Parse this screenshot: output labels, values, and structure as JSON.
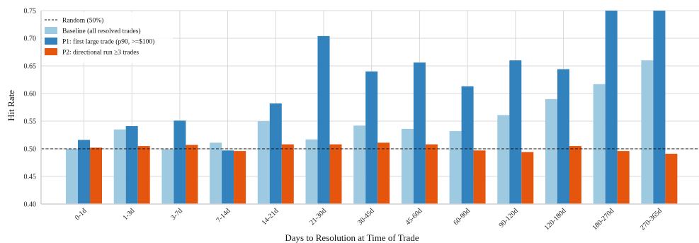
{
  "chart_data": {
    "type": "bar",
    "xlabel": "Days to Resolution at Time of Trade",
    "ylabel": "Hit Rate",
    "ylim": [
      0.4,
      0.75
    ],
    "yticks": [
      "0.40",
      "0.45",
      "0.50",
      "0.55",
      "0.60",
      "0.65",
      "0.70",
      "0.75"
    ],
    "grid": true,
    "legend_position": "top-left",
    "categories": [
      "0-1d",
      "1-3d",
      "3-7d",
      "7-14d",
      "14-21d",
      "21-30d",
      "30-45d",
      "45-60d",
      "60-90d",
      "90-120d",
      "120-180d",
      "180-270d",
      "270-365d"
    ],
    "reference_line": {
      "label": "Random (50%)",
      "value": 0.5,
      "color": "#111111"
    },
    "series": [
      {
        "name": "Baseline (all resolved trades)",
        "color": "#9ecae1",
        "values": [
          0.5,
          0.535,
          0.499,
          0.511,
          0.55,
          0.517,
          0.542,
          0.536,
          0.532,
          0.561,
          0.59,
          0.617,
          0.66
        ]
      },
      {
        "name": "P1: first large trade (p90, >=$100)",
        "color": "#3182bd",
        "values": [
          0.516,
          0.541,
          0.551,
          0.497,
          0.582,
          0.704,
          0.64,
          0.656,
          0.613,
          0.66,
          0.644,
          0.75,
          0.75
        ]
      },
      {
        "name": "P2: directional run ≥3 trades",
        "color": "#e6550d",
        "values": [
          0.502,
          0.505,
          0.507,
          0.496,
          0.508,
          0.508,
          0.511,
          0.508,
          0.497,
          0.494,
          0.505,
          0.496,
          0.491
        ]
      }
    ]
  }
}
